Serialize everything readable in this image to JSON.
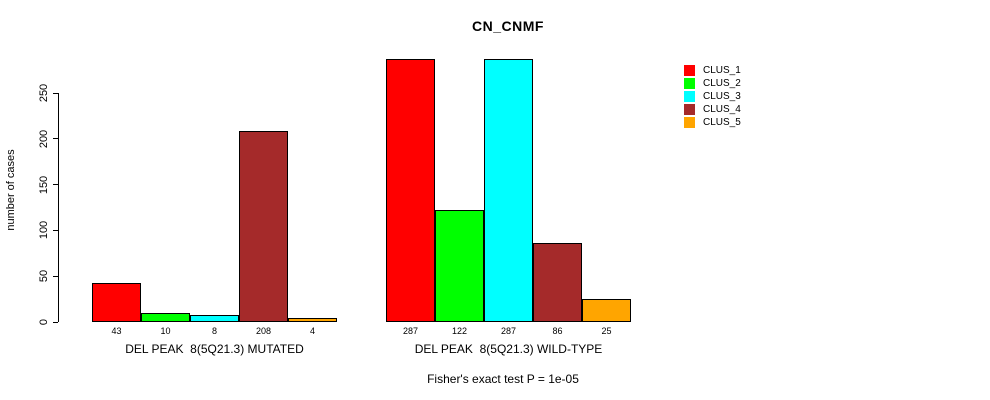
{
  "chart_data": {
    "type": "bar",
    "title": "CN_CNMF",
    "ylabel": "number of cases",
    "yticks": [
      0,
      50,
      100,
      150,
      200,
      250
    ],
    "ylim": [
      0,
      290
    ],
    "grid": false,
    "legend_position": "top-right",
    "categories": [
      "DEL PEAK  8(5Q21.3) MUTATED",
      "DEL PEAK  8(5Q21.3) WILD-TYPE"
    ],
    "series": [
      {
        "name": "CLUS_1",
        "color": "#FF0000",
        "values": [
          43,
          287
        ]
      },
      {
        "name": "CLUS_2",
        "color": "#00FF00",
        "values": [
          10,
          122
        ]
      },
      {
        "name": "CLUS_3",
        "color": "#00FFFF",
        "values": [
          8,
          287
        ]
      },
      {
        "name": "CLUS_4",
        "color": "#A52A2A",
        "values": [
          208,
          86
        ]
      },
      {
        "name": "CLUS_5",
        "color": "#FFA500",
        "values": [
          4,
          25
        ]
      }
    ],
    "bar_border_color": "#000000",
    "footnote": "Fisher's exact test P = 1e-05"
  }
}
